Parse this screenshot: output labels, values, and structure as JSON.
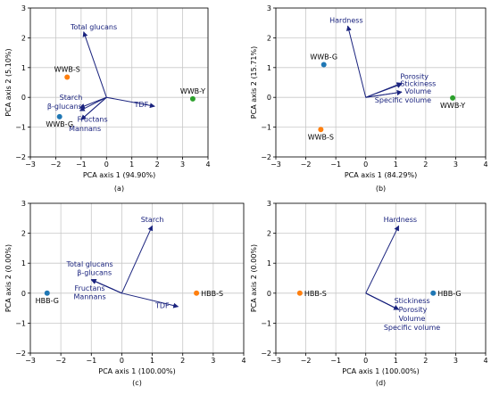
{
  "colors": {
    "arrow": "#1a237e",
    "grid": "#c8c8c8"
  },
  "chart_data": [
    {
      "type": "scatter",
      "caption": "(a)",
      "xlabel": "PCA axis 1 (94.90%)",
      "ylabel": "PCA axis 2 (5.10%)",
      "xlim": [
        -3,
        4
      ],
      "ylim": [
        -2,
        3
      ],
      "xticks": [
        -3,
        -2,
        -1,
        0,
        1,
        2,
        3,
        4
      ],
      "yticks": [
        -2,
        -1,
        0,
        1,
        2,
        3
      ],
      "grid": true,
      "points": [
        {
          "label": "WWB-S",
          "x": -1.55,
          "y": 0.68,
          "color": "#ff7f0e",
          "anchor": "above"
        },
        {
          "label": "WWB-G",
          "x": -1.85,
          "y": -0.65,
          "color": "#1f77b4",
          "anchor": "below"
        },
        {
          "label": "WWB-Y",
          "x": 3.4,
          "y": -0.05,
          "color": "#2ca02c",
          "anchor": "above"
        }
      ],
      "loadings": [
        {
          "label": "Total glucans",
          "x": -0.9,
          "y": 2.2,
          "text_x": -0.5,
          "text_y": 2.28,
          "align": "middle"
        },
        {
          "label": "Starch",
          "x": -1.05,
          "y": -0.35,
          "text_x": -1.4,
          "text_y": -0.08,
          "align": "middle"
        },
        {
          "label": "β-glucans",
          "x": -1.05,
          "y": -0.45,
          "text_x": -1.65,
          "text_y": -0.38,
          "align": "middle"
        },
        {
          "label": "Fructans",
          "x": -1.0,
          "y": -0.75,
          "text_x": -0.55,
          "text_y": -0.82,
          "align": "middle"
        },
        {
          "label": "Mannans",
          "x": -1.0,
          "y": -0.75,
          "text_x": -0.85,
          "text_y": -1.13,
          "align": "middle"
        },
        {
          "label": "TDF",
          "x": 1.9,
          "y": -0.3,
          "text_x": 1.1,
          "text_y": -0.33,
          "align": "start"
        }
      ]
    },
    {
      "type": "scatter",
      "caption": "(b)",
      "xlabel": "PCA axis 1 (84.29%)",
      "ylabel": "PCA axis 2 (15.71%)",
      "xlim": [
        -3,
        4
      ],
      "ylim": [
        -2,
        3
      ],
      "xticks": [
        -3,
        -2,
        -1,
        0,
        1,
        2,
        3,
        4
      ],
      "yticks": [
        -2,
        -1,
        0,
        1,
        2,
        3
      ],
      "grid": true,
      "points": [
        {
          "label": "WWB-G",
          "x": -1.4,
          "y": 1.1,
          "color": "#1f77b4",
          "anchor": "above"
        },
        {
          "label": "WWB-S",
          "x": -1.5,
          "y": -1.08,
          "color": "#ff7f0e",
          "anchor": "below"
        },
        {
          "label": "WWB-Y",
          "x": 2.9,
          "y": -0.02,
          "color": "#2ca02c",
          "anchor": "below"
        }
      ],
      "loadings": [
        {
          "label": "Hardness",
          "x": -0.6,
          "y": 2.4,
          "text_x": -0.65,
          "text_y": 2.5,
          "align": "middle"
        },
        {
          "label": "Porosity",
          "x": 1.2,
          "y": 0.48,
          "text_x": 1.15,
          "text_y": 0.62,
          "align": "start"
        },
        {
          "label": "Stickiness",
          "x": 1.2,
          "y": 0.45,
          "text_x": 1.15,
          "text_y": 0.38,
          "align": "start"
        },
        {
          "label": "Volume",
          "x": 1.2,
          "y": 0.18,
          "text_x": 1.3,
          "text_y": 0.12,
          "align": "start"
        },
        {
          "label": "Specific volume",
          "x": 1.2,
          "y": 0.18,
          "text_x": 0.3,
          "text_y": -0.18,
          "align": "start"
        }
      ]
    },
    {
      "type": "scatter",
      "caption": "(c)",
      "xlabel": "PCA axis 1 (100.00%)",
      "ylabel": "PCA axis 2 (0.00%)",
      "xlim": [
        -3,
        4
      ],
      "ylim": [
        -2,
        3
      ],
      "xticks": [
        -3,
        -2,
        -1,
        0,
        1,
        2,
        3,
        4
      ],
      "yticks": [
        -2,
        -1,
        0,
        1,
        2,
        3
      ],
      "grid": true,
      "points": [
        {
          "label": "HBB-G",
          "x": -2.45,
          "y": 0.0,
          "color": "#1f77b4",
          "anchor": "below"
        },
        {
          "label": "HBB-S",
          "x": 2.45,
          "y": 0.0,
          "color": "#ff7f0e",
          "anchor": "right"
        }
      ],
      "loadings": [
        {
          "label": "Starch",
          "x": 1.0,
          "y": 2.25,
          "text_x": 1.0,
          "text_y": 2.38,
          "align": "middle"
        },
        {
          "label": "Total glucans",
          "x": -1.0,
          "y": 0.45,
          "text_x": -1.05,
          "text_y": 0.88,
          "align": "middle"
        },
        {
          "label": "β-glucans",
          "x": -1.0,
          "y": 0.45,
          "text_x": -0.9,
          "text_y": 0.6,
          "align": "middle"
        },
        {
          "label": "Fructans",
          "x": -1.0,
          "y": 0.45,
          "text_x": -1.05,
          "text_y": 0.08,
          "align": "middle"
        },
        {
          "label": "Mannans",
          "x": -1.0,
          "y": 0.45,
          "text_x": -1.05,
          "text_y": -0.2,
          "align": "middle"
        },
        {
          "label": "TDF",
          "x": 1.85,
          "y": -0.45,
          "text_x": 1.1,
          "text_y": -0.5,
          "align": "start"
        }
      ]
    },
    {
      "type": "scatter",
      "caption": "(d)",
      "xlabel": "PCA axis 1 (100.00%)",
      "ylabel": "PCA axis 2 (0.00%)",
      "xlim": [
        -3,
        4
      ],
      "ylim": [
        -2,
        3
      ],
      "xticks": [
        -3,
        -2,
        -1,
        0,
        1,
        2,
        3,
        4
      ],
      "yticks": [
        -2,
        -1,
        0,
        1,
        2,
        3
      ],
      "grid": true,
      "points": [
        {
          "label": "HBB-S",
          "x": -2.2,
          "y": 0.0,
          "color": "#ff7f0e",
          "anchor": "right"
        },
        {
          "label": "HBB-G",
          "x": 2.25,
          "y": 0.0,
          "color": "#1f77b4",
          "anchor": "right"
        }
      ],
      "loadings": [
        {
          "label": "Hardness",
          "x": 1.1,
          "y": 2.25,
          "text_x": 1.15,
          "text_y": 2.38,
          "align": "middle"
        },
        {
          "label": "Stickiness",
          "x": 1.1,
          "y": -0.55,
          "text_x": 0.95,
          "text_y": -0.33,
          "align": "start"
        },
        {
          "label": "Porosity",
          "x": 1.1,
          "y": -0.55,
          "text_x": 1.1,
          "text_y": -0.63,
          "align": "start"
        },
        {
          "label": "Volume",
          "x": 1.1,
          "y": -0.55,
          "text_x": 1.1,
          "text_y": -0.93,
          "align": "start"
        },
        {
          "label": "Specific volume",
          "x": 1.1,
          "y": -0.55,
          "text_x": 0.6,
          "text_y": -1.23,
          "align": "start"
        }
      ]
    }
  ]
}
